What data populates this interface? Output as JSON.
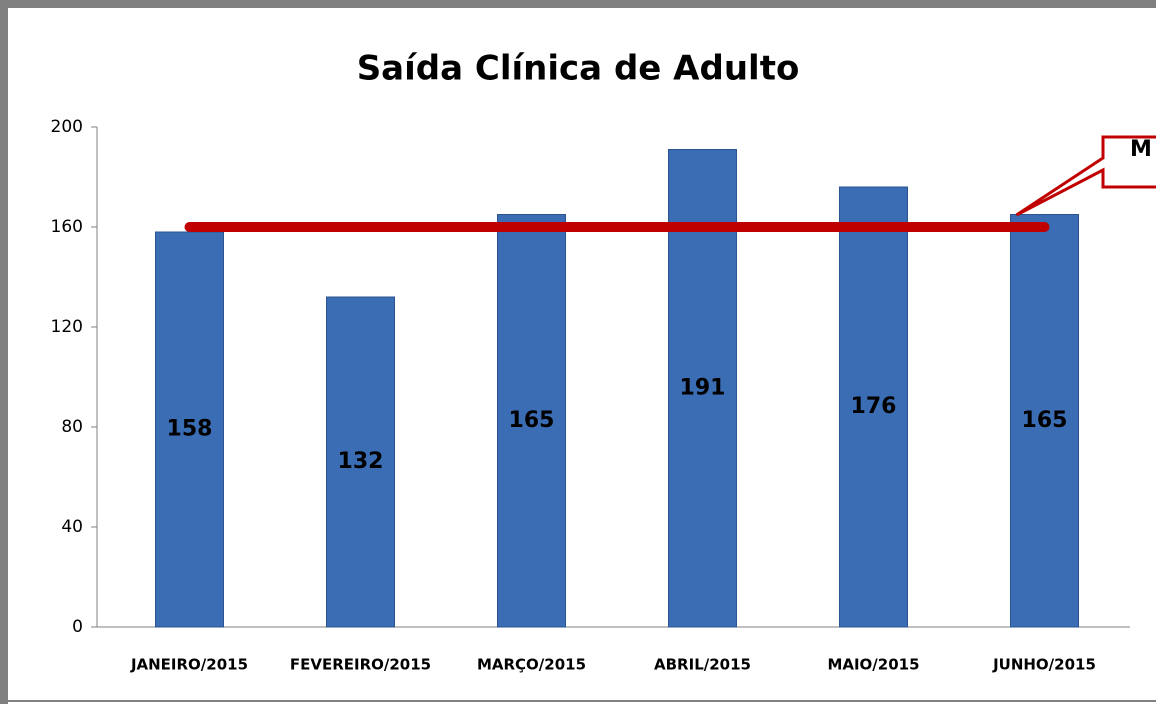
{
  "chart_data": {
    "type": "bar",
    "title": "Saída Clínica de Adulto",
    "categories": [
      "JANEIRO/2015",
      "FEVEREIRO/2015",
      "MARÇO/2015",
      "ABRIL/2015",
      "MAIO/2015",
      "JUNHO/2015"
    ],
    "values": [
      158,
      132,
      165,
      191,
      176,
      165
    ],
    "color": "#3a6db3",
    "ylim": [
      0,
      200
    ],
    "yticks": [
      0,
      40,
      80,
      120,
      160,
      200
    ],
    "grid": false,
    "reference_line": {
      "value": 160,
      "color": "#c00000",
      "label": "M"
    }
  }
}
